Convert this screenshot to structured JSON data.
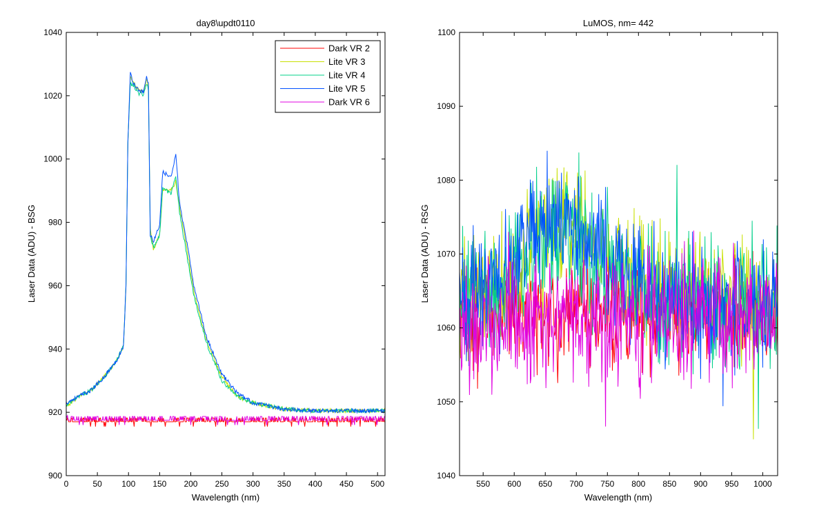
{
  "chart_data": [
    {
      "type": "line",
      "title": "day8\\updt0110",
      "xlabel": "Wavelength (nm)",
      "ylabel": "Laser Data (ADU) - BSG",
      "xlim": [
        0,
        512
      ],
      "ylim": [
        900,
        1040
      ],
      "xticks": [
        0,
        50,
        100,
        150,
        200,
        250,
        300,
        350,
        400,
        450,
        500
      ],
      "yticks": [
        900,
        920,
        940,
        960,
        980,
        1000,
        1020,
        1040
      ],
      "grid": false,
      "legend_position": "top-right",
      "series": [
        {
          "name": "Dark VR 2",
          "color": "#ff0000",
          "style": "flat_noisy",
          "points": [
            [
              0,
              917
            ],
            [
              512,
              917
            ]
          ]
        },
        {
          "name": "Lite VR 3",
          "color": "#c8e000",
          "style": "envelope",
          "points": [
            [
              0,
              922
            ],
            [
              20,
              925
            ],
            [
              40,
              927
            ],
            [
              60,
              931
            ],
            [
              80,
              936
            ],
            [
              92,
              941
            ],
            [
              96,
              960
            ],
            [
              99,
              1005
            ],
            [
              103,
              1026
            ],
            [
              108,
              1024
            ],
            [
              115,
              1022
            ],
            [
              124,
              1021
            ],
            [
              129,
              1025
            ],
            [
              132,
              1023
            ],
            [
              135,
              978
            ],
            [
              140,
              971
            ],
            [
              150,
              976
            ],
            [
              155,
              990
            ],
            [
              168,
              990
            ],
            [
              176,
              993
            ],
            [
              182,
              985
            ],
            [
              195,
              970
            ],
            [
              205,
              958
            ],
            [
              225,
              943
            ],
            [
              250,
              931
            ],
            [
              275,
              925
            ],
            [
              300,
              923
            ],
            [
              350,
              921
            ],
            [
              400,
              920.5
            ],
            [
              512,
              920.5
            ]
          ]
        },
        {
          "name": "Lite VR 4",
          "color": "#00d08a",
          "style": "envelope",
          "points": [
            [
              0,
              922
            ],
            [
              20,
              925
            ],
            [
              40,
              927
            ],
            [
              60,
              931
            ],
            [
              80,
              936
            ],
            [
              92,
              941
            ],
            [
              96,
              960
            ],
            [
              99,
              1005
            ],
            [
              103,
              1024
            ],
            [
              108,
              1023
            ],
            [
              115,
              1021
            ],
            [
              124,
              1020
            ],
            [
              129,
              1024
            ],
            [
              132,
              1022
            ],
            [
              135,
              976
            ],
            [
              140,
              972
            ],
            [
              150,
              976
            ],
            [
              155,
              991
            ],
            [
              168,
              989
            ],
            [
              176,
              995
            ],
            [
              182,
              983
            ],
            [
              195,
              968
            ],
            [
              205,
              957
            ],
            [
              225,
              942
            ],
            [
              250,
              930
            ],
            [
              275,
              925
            ],
            [
              300,
              923
            ],
            [
              350,
              921
            ],
            [
              400,
              920.5
            ],
            [
              512,
              920.5
            ]
          ]
        },
        {
          "name": "Lite VR 5",
          "color": "#0050ff",
          "style": "envelope",
          "points": [
            [
              0,
              923
            ],
            [
              20,
              925
            ],
            [
              40,
              927
            ],
            [
              60,
              931
            ],
            [
              80,
              936
            ],
            [
              92,
              941
            ],
            [
              96,
              960
            ],
            [
              99,
              1005
            ],
            [
              103,
              1027
            ],
            [
              108,
              1024
            ],
            [
              115,
              1022
            ],
            [
              124,
              1021
            ],
            [
              129,
              1026
            ],
            [
              132,
              1024
            ],
            [
              135,
              976
            ],
            [
              140,
              974
            ],
            [
              150,
              979
            ],
            [
              155,
              996
            ],
            [
              168,
              994
            ],
            [
              176,
              1002
            ],
            [
              182,
              986
            ],
            [
              195,
              972
            ],
            [
              205,
              960
            ],
            [
              225,
              944
            ],
            [
              250,
              932
            ],
            [
              275,
              926
            ],
            [
              300,
              923
            ],
            [
              350,
              921
            ],
            [
              400,
              920.5
            ],
            [
              512,
              920.5
            ]
          ]
        },
        {
          "name": "Dark VR 6",
          "color": "#e000e0",
          "style": "flat_noisy",
          "points": [
            [
              0,
              917.5
            ],
            [
              512,
              917.5
            ]
          ]
        }
      ]
    },
    {
      "type": "line",
      "title": "LuMOS, nm= 442",
      "xlabel": "Wavelength (nm)",
      "ylabel": "Laser Data (ADU) - RSG",
      "xlim": [
        512,
        1024
      ],
      "ylim": [
        1040,
        1100
      ],
      "xticks": [
        550,
        600,
        650,
        700,
        750,
        800,
        850,
        900,
        950,
        1000
      ],
      "yticks": [
        1040,
        1050,
        1060,
        1070,
        1080,
        1090,
        1100
      ],
      "grid": false,
      "series": [
        {
          "name": "Dark VR 2",
          "color": "#ff0000",
          "style": "noise",
          "mean": [
            [
              512,
              1062
            ],
            [
              1024,
              1062
            ]
          ],
          "spread": 5
        },
        {
          "name": "Lite VR 3",
          "color": "#c8e000",
          "style": "noise",
          "mean": [
            [
              512,
              1064
            ],
            [
              580,
              1066
            ],
            [
              620,
              1071
            ],
            [
              660,
              1075
            ],
            [
              700,
              1074
            ],
            [
              740,
              1070
            ],
            [
              780,
              1067
            ],
            [
              850,
              1065
            ],
            [
              1024,
              1064
            ]
          ],
          "spread": 6
        },
        {
          "name": "Lite VR 4",
          "color": "#00d08a",
          "style": "noise",
          "mean": [
            [
              512,
              1064
            ],
            [
              580,
              1066
            ],
            [
              620,
              1070
            ],
            [
              660,
              1074
            ],
            [
              700,
              1073
            ],
            [
              740,
              1069
            ],
            [
              780,
              1066
            ],
            [
              850,
              1064
            ],
            [
              1024,
              1063
            ]
          ],
          "spread": 6
        },
        {
          "name": "Lite VR 5",
          "color": "#0050ff",
          "style": "noise",
          "mean": [
            [
              512,
              1064
            ],
            [
              580,
              1066
            ],
            [
              620,
              1071
            ],
            [
              660,
              1075
            ],
            [
              700,
              1074
            ],
            [
              740,
              1070
            ],
            [
              780,
              1066
            ],
            [
              850,
              1064
            ],
            [
              1024,
              1063
            ]
          ],
          "spread": 6
        },
        {
          "name": "Dark VR 6",
          "color": "#e000e0",
          "style": "noise",
          "mean": [
            [
              512,
              1061
            ],
            [
              1024,
              1061
            ]
          ],
          "spread": 6
        }
      ]
    }
  ]
}
